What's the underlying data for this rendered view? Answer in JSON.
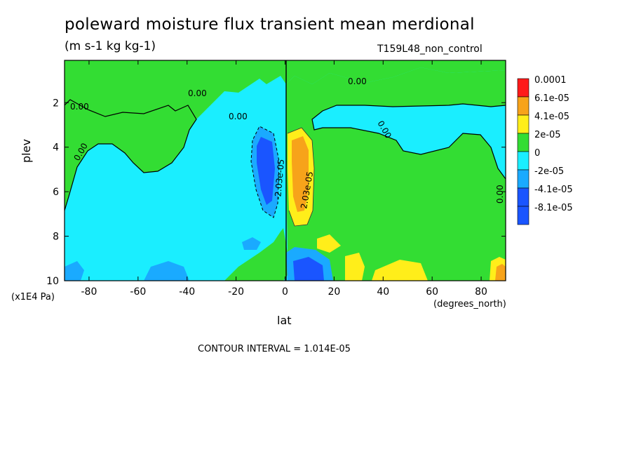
{
  "chart_data": {
    "type": "heatmap",
    "title": "poleward moisture flux transient mean merdional",
    "units_label": "(m s-1 kg kg-1)",
    "dataset_label": "T159L48_non_control",
    "xlabel": "lat",
    "xunits": "(degrees_north)",
    "ylabel": "plev",
    "yunits": "(x1E4 Pa)",
    "contour_interval_text": "CONTOUR INTERVAL = 1.014E-05",
    "xlim": [
      -90,
      90
    ],
    "ylim": [
      0.1,
      10
    ],
    "y_inverted": true,
    "x_tick_labels": [
      "-80",
      "-60",
      "-40",
      "-20",
      "0",
      "20",
      "40",
      "60",
      "80"
    ],
    "x_ticks": [
      -80,
      -60,
      -40,
      -20,
      0,
      20,
      40,
      60,
      80
    ],
    "y_tick_labels": [
      "2",
      "4",
      "6",
      "8",
      "10"
    ],
    "y_ticks": [
      2,
      4,
      6,
      8,
      10
    ],
    "legend": [
      {
        "label": "0.0001",
        "color": "#ff1a1a"
      },
      {
        "label": "6.1e-05",
        "color": "#f7a31a"
      },
      {
        "label": "4.1e-05",
        "color": "#ffee1a"
      },
      {
        "label": "2e-05",
        "color": "#33dd33"
      },
      {
        "label": "0",
        "color": "#1aeeff"
      },
      {
        "label": "-2e-05",
        "color": "#1aaaff"
      },
      {
        "label": "-4.1e-05",
        "color": "#1a55ff"
      },
      {
        "label": "-8.1e-05",
        "color": ""
      }
    ],
    "contour_labels": [
      "0.00",
      "0.00",
      "0.00",
      "0.00",
      "0.00",
      "0.00",
      "-2.03e-05",
      "2.03e-05",
      "0.00"
    ]
  }
}
